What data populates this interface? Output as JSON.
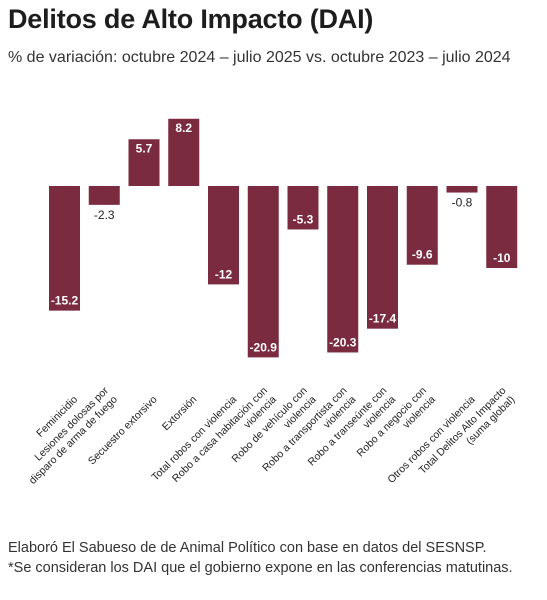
{
  "title": "Delitos de Alto Impacto (DAI)",
  "subtitle": "% de variación: octubre 2024 – julio 2025 vs. octubre 2023 – julio 2024",
  "notes": [
    "Elaboró El Sabueso de de Animal Político con base en datos del SESNSP.",
    "*Se consideran los DAI que el gobierno expone en las conferencias matutinas."
  ],
  "colors": {
    "bar": "#7a2b3f",
    "label_text": "#ffffff",
    "label_outside": "#222222"
  },
  "chart_data": {
    "type": "bar",
    "categories": [
      [
        "Feminicidio"
      ],
      [
        "Lesiones dolosas por",
        "disparo de arma de fuego"
      ],
      [
        "Secuestro extorsivo"
      ],
      [
        "Extorsión"
      ],
      [
        "Total robos con violencia"
      ],
      [
        "Robo a casa habitación con",
        "violencia"
      ],
      [
        "Robo de vehículo con",
        "violencia"
      ],
      [
        "Robo a transportista con",
        "violencia"
      ],
      [
        "Robo a transeúnte con",
        "violencia"
      ],
      [
        "Robo a negocio con",
        "violencia"
      ],
      [
        "Otros robos con violencia"
      ],
      [
        "Total Delitos Alto Impacto",
        "(suma global)"
      ]
    ],
    "values": [
      -15.2,
      -2.3,
      5.7,
      8.2,
      -12,
      -20.9,
      -5.3,
      -20.3,
      -17.4,
      -9.6,
      -0.8,
      -10
    ],
    "value_labels": [
      "-15.2",
      "-2.3",
      "5.7",
      "8.2",
      "-12",
      "-20.9",
      "-5.3",
      "-20.3",
      "-17.4",
      "-9.6",
      "-0.8",
      "-10"
    ],
    "ylim": [
      -20.9,
      8.2
    ],
    "grid": false,
    "legend": false
  }
}
